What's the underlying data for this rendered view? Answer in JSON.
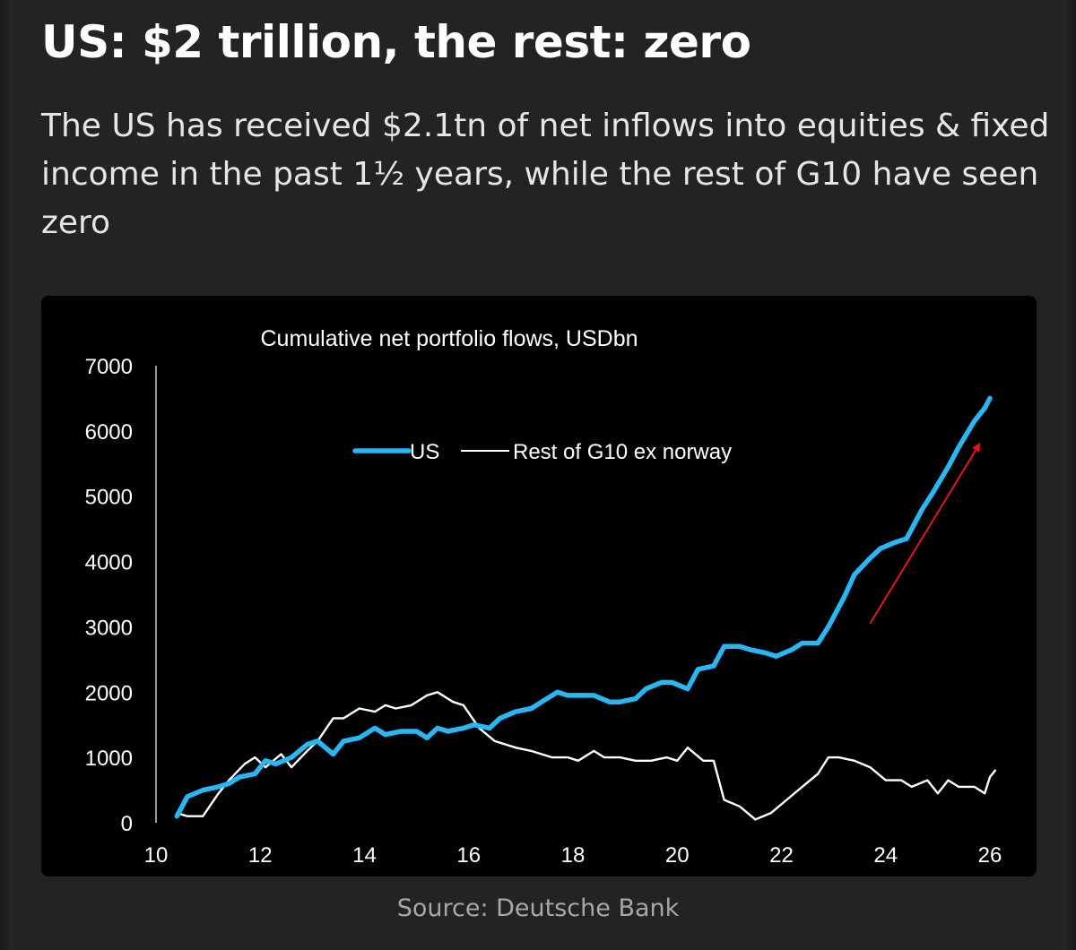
{
  "header": {
    "title": "US: $2 trillion, the rest: zero",
    "subtitle": "The US has received $2.1tn of net inflows into equities & fixed income in the past 1½ years, while the rest of G10 have seen zero"
  },
  "footer": {
    "source": "Source: Deutsche Bank"
  },
  "colors": {
    "us_line": "#29b6f2",
    "rest_line": "#ffffff",
    "arrow": "#e01818",
    "chart_background": "#000000",
    "page_background": "#232323"
  },
  "chart_data": {
    "type": "line",
    "title": "Cumulative net portfolio flows, USDbn",
    "xlabel": "",
    "ylabel": "",
    "xlim": [
      10,
      26
    ],
    "ylim": [
      0,
      7000
    ],
    "x_ticks": [
      10,
      12,
      14,
      16,
      18,
      20,
      22,
      24,
      26
    ],
    "y_ticks": [
      0,
      1000,
      2000,
      3000,
      4000,
      5000,
      6000,
      7000
    ],
    "grid": false,
    "legend": {
      "placement": "top-center"
    },
    "series": [
      {
        "name": "US",
        "color": "#29b6f2",
        "points": [
          [
            10.4,
            100
          ],
          [
            10.6,
            400
          ],
          [
            10.9,
            500
          ],
          [
            11.2,
            550
          ],
          [
            11.4,
            600
          ],
          [
            11.6,
            700
          ],
          [
            11.9,
            750
          ],
          [
            12.1,
            950
          ],
          [
            12.3,
            900
          ],
          [
            12.6,
            1000
          ],
          [
            12.9,
            1200
          ],
          [
            13.1,
            1250
          ],
          [
            13.4,
            1050
          ],
          [
            13.6,
            1250
          ],
          [
            13.9,
            1300
          ],
          [
            14.2,
            1450
          ],
          [
            14.4,
            1350
          ],
          [
            14.7,
            1400
          ],
          [
            15.0,
            1400
          ],
          [
            15.2,
            1300
          ],
          [
            15.4,
            1450
          ],
          [
            15.6,
            1400
          ],
          [
            15.9,
            1450
          ],
          [
            16.1,
            1500
          ],
          [
            16.4,
            1450
          ],
          [
            16.6,
            1600
          ],
          [
            16.9,
            1700
          ],
          [
            17.2,
            1750
          ],
          [
            17.4,
            1850
          ],
          [
            17.7,
            2000
          ],
          [
            17.9,
            1950
          ],
          [
            18.2,
            1950
          ],
          [
            18.4,
            1950
          ],
          [
            18.7,
            1850
          ],
          [
            18.9,
            1850
          ],
          [
            19.2,
            1900
          ],
          [
            19.4,
            2050
          ],
          [
            19.7,
            2150
          ],
          [
            19.9,
            2150
          ],
          [
            20.2,
            2050
          ],
          [
            20.4,
            2350
          ],
          [
            20.7,
            2400
          ],
          [
            20.9,
            2700
          ],
          [
            21.2,
            2700
          ],
          [
            21.4,
            2650
          ],
          [
            21.7,
            2600
          ],
          [
            21.9,
            2550
          ],
          [
            22.2,
            2650
          ],
          [
            22.4,
            2750
          ],
          [
            22.7,
            2750
          ],
          [
            22.9,
            3000
          ],
          [
            23.2,
            3450
          ],
          [
            23.4,
            3800
          ],
          [
            23.7,
            4050
          ],
          [
            23.9,
            4200
          ],
          [
            24.2,
            4300
          ],
          [
            24.4,
            4350
          ],
          [
            24.7,
            4800
          ],
          [
            24.9,
            5050
          ],
          [
            25.2,
            5450
          ],
          [
            25.4,
            5750
          ],
          [
            25.7,
            6150
          ],
          [
            25.9,
            6350
          ],
          [
            26.0,
            6500
          ]
        ]
      },
      {
        "name": "Rest of G10 ex norway",
        "color": "#ffffff",
        "points": [
          [
            10.4,
            150
          ],
          [
            10.6,
            100
          ],
          [
            10.9,
            100
          ],
          [
            11.2,
            450
          ],
          [
            11.4,
            650
          ],
          [
            11.7,
            900
          ],
          [
            11.9,
            1000
          ],
          [
            12.1,
            850
          ],
          [
            12.4,
            1050
          ],
          [
            12.6,
            850
          ],
          [
            12.9,
            1100
          ],
          [
            13.1,
            1250
          ],
          [
            13.4,
            1600
          ],
          [
            13.6,
            1600
          ],
          [
            13.9,
            1750
          ],
          [
            14.2,
            1700
          ],
          [
            14.4,
            1800
          ],
          [
            14.6,
            1750
          ],
          [
            14.9,
            1800
          ],
          [
            15.2,
            1950
          ],
          [
            15.4,
            2000
          ],
          [
            15.7,
            1850
          ],
          [
            15.9,
            1800
          ],
          [
            16.2,
            1450
          ],
          [
            16.5,
            1250
          ],
          [
            16.9,
            1150
          ],
          [
            17.2,
            1100
          ],
          [
            17.6,
            1000
          ],
          [
            17.9,
            1000
          ],
          [
            18.1,
            950
          ],
          [
            18.4,
            1100
          ],
          [
            18.6,
            1000
          ],
          [
            18.9,
            1000
          ],
          [
            19.2,
            950
          ],
          [
            19.5,
            950
          ],
          [
            19.8,
            1000
          ],
          [
            20.0,
            950
          ],
          [
            20.2,
            1150
          ],
          [
            20.5,
            950
          ],
          [
            20.7,
            950
          ],
          [
            20.9,
            350
          ],
          [
            21.2,
            250
          ],
          [
            21.5,
            50
          ],
          [
            21.8,
            150
          ],
          [
            22.1,
            350
          ],
          [
            22.4,
            550
          ],
          [
            22.7,
            750
          ],
          [
            22.9,
            1000
          ],
          [
            23.1,
            1000
          ],
          [
            23.4,
            950
          ],
          [
            23.7,
            850
          ],
          [
            24.0,
            650
          ],
          [
            24.3,
            650
          ],
          [
            24.5,
            550
          ],
          [
            24.8,
            650
          ],
          [
            25.0,
            450
          ],
          [
            25.2,
            650
          ],
          [
            25.4,
            550
          ],
          [
            25.7,
            550
          ],
          [
            25.9,
            450
          ],
          [
            26.0,
            700
          ],
          [
            26.1,
            800
          ]
        ]
      }
    ],
    "annotations": [
      {
        "type": "arrow",
        "color": "#e01818",
        "from": [
          23.7,
          3050
        ],
        "to": [
          25.8,
          5800
        ]
      }
    ]
  }
}
